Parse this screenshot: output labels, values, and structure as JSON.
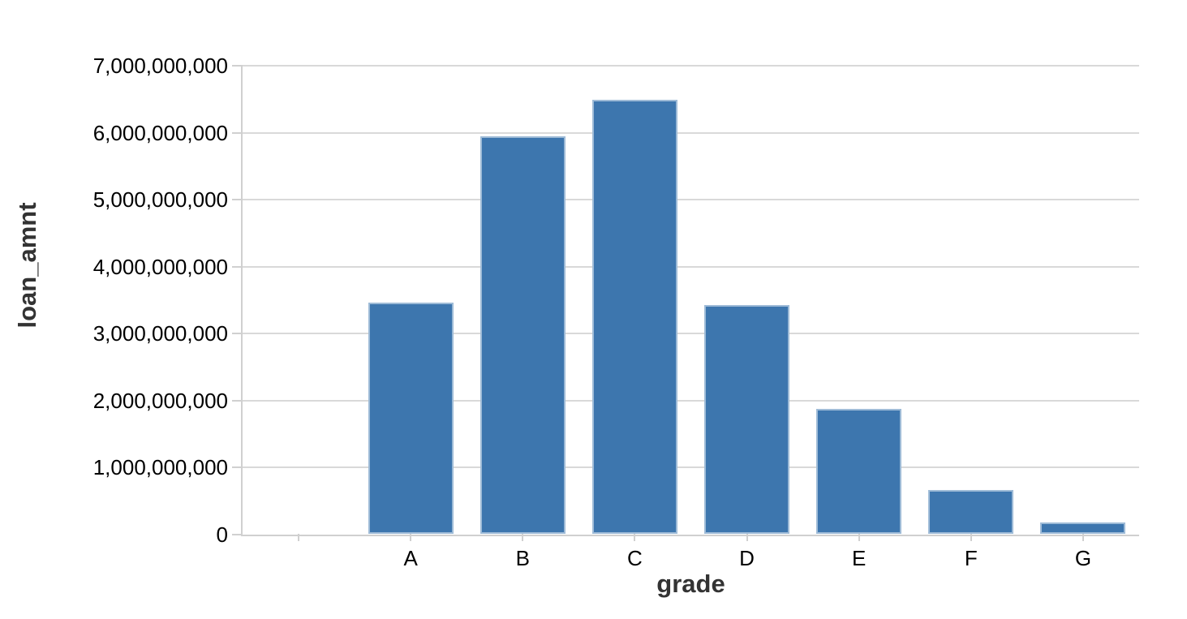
{
  "chart_data": {
    "type": "bar",
    "title": "",
    "xlabel": "grade",
    "ylabel": "loan_amnt",
    "categories": [
      "",
      "A",
      "B",
      "C",
      "D",
      "E",
      "F",
      "G"
    ],
    "values": [
      0,
      3450000000,
      5930000000,
      6480000000,
      3410000000,
      1860000000,
      650000000,
      170000000
    ],
    "ylim": [
      0,
      7000000000
    ],
    "y_tick_values": [
      0,
      1000000000,
      2000000000,
      3000000000,
      4000000000,
      5000000000,
      6000000000,
      7000000000
    ],
    "y_tick_labels": [
      "0",
      "1,000,000,000",
      "2,000,000,000",
      "3,000,000,000",
      "4,000,000,000",
      "5,000,000,000",
      "6,000,000,000",
      "7,000,000,000"
    ],
    "grid": true,
    "legend": false
  },
  "colors": {
    "bar_fill": "#3d76ae",
    "bar_stroke": "rgba(255,255,255,0.5)",
    "grid": "#d9d9d9",
    "axis_line": "#d0d0d0",
    "tick_mark": "#d0d0d0",
    "tick_label": "#000000",
    "axis_title": "#333333",
    "background": "#ffffff"
  }
}
